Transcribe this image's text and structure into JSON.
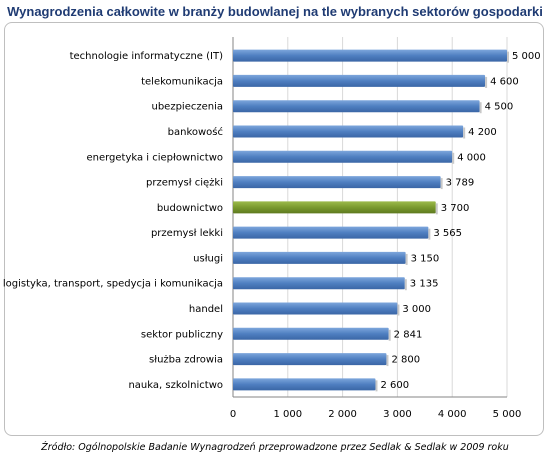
{
  "title": "Wynagrodzenia całkowite w branży budowlanej na tle wybranych sektorów gospodarki",
  "source": "Źródło: Ogólnopolskie Badanie Wynagrodzeń przeprowadzone przez Sedlak & Sedlak w 2009 roku",
  "colors": {
    "bar": "#4f7fc1",
    "highlight": "#7a9a2e",
    "grid": "#d9d9d9",
    "title": "#1f3b73"
  },
  "chart_data": {
    "type": "bar",
    "orientation": "horizontal",
    "title": "Wynagrodzenia całkowite w branży budowlanej na tle wybranych sektorów gospodarki",
    "categories": [
      "technologie informatyczne (IT)",
      "telekomunikacja",
      "ubezpieczenia",
      "bankowość",
      "energetyka i ciepłownictwo",
      "przemysł ciężki",
      "budownictwo",
      "przemysł lekki",
      "usługi",
      "logistyka, transport, spedycja i komunikacja",
      "handel",
      "sektor publiczny",
      "służba zdrowia",
      "nauka, szkolnictwo"
    ],
    "values": [
      5000,
      4600,
      4500,
      4200,
      4000,
      3789,
      3700,
      3565,
      3150,
      3135,
      3000,
      2841,
      2800,
      2600
    ],
    "value_labels": [
      "5 000",
      "4 600",
      "4 500",
      "4 200",
      "4 000",
      "3 789",
      "3 700",
      "3 565",
      "3 150",
      "3 135",
      "3 000",
      "2 841",
      "2 800",
      "2 600"
    ],
    "highlight_category": "budownictwo",
    "xlim": [
      0,
      5000
    ],
    "xticks": [
      0,
      1000,
      2000,
      3000,
      4000,
      5000
    ],
    "xtick_labels": [
      "0",
      "1 000",
      "2 000",
      "3 000",
      "4 000",
      "5 000"
    ],
    "grid": true
  }
}
